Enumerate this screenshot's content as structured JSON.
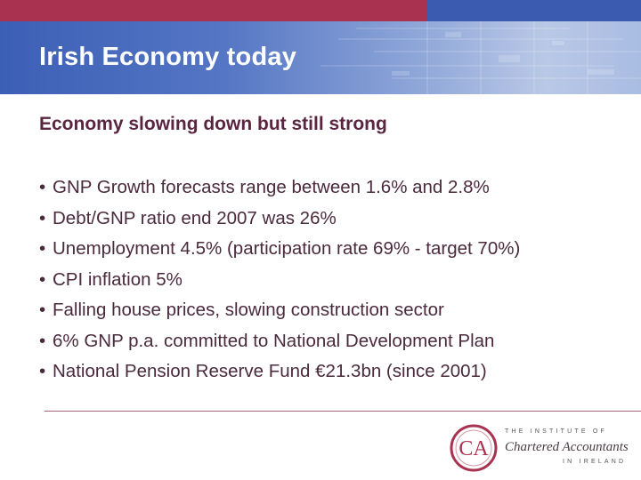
{
  "slide": {
    "title": "Irish Economy today",
    "subtitle": "Economy slowing down but still strong",
    "bullet_glyph": "•",
    "bullets": [
      "GNP Growth forecasts range between 1.6% and 2.8%",
      "Debt/GNP ratio end 2007 was 26%",
      "Unemployment 4.5% (participation rate 69% - target 70%)",
      "CPI inflation 5%",
      "Falling house prices, slowing construction sector",
      "6% GNP p.a. committed to National Development Plan",
      "National Pension Reserve Fund €21.3bn (since 2001)"
    ]
  },
  "logo": {
    "top_text": "THE INSTITUTE OF",
    "main_text": "Chartered Accountants",
    "bottom_text": "IN IRELAND",
    "mark_letters": "CA"
  },
  "colors": {
    "top_bar_red": "#a8324f",
    "top_bar_blue": "#3a5bb0",
    "text_maroon": "#5a2540",
    "logo_red": "#a8324f"
  }
}
